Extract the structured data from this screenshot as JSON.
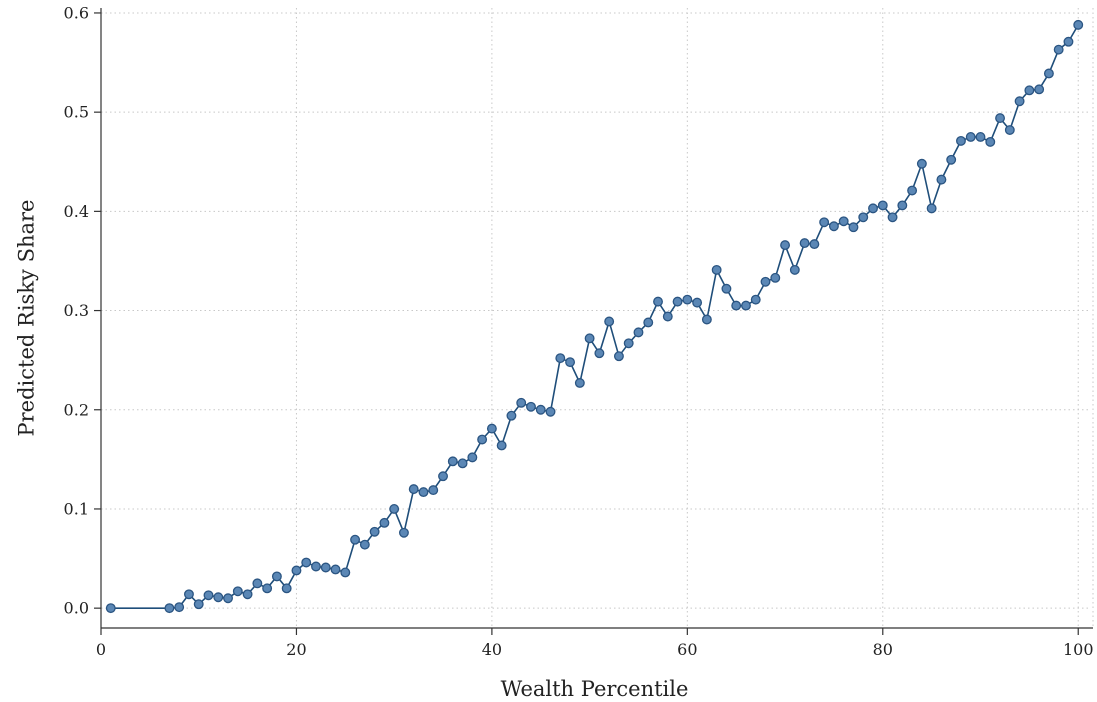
{
  "chart_data": {
    "type": "line",
    "title": "",
    "xlabel": "Wealth Percentile",
    "ylabel": "Predicted Risky Share",
    "xlim": [
      0,
      101
    ],
    "ylim": [
      -0.02,
      0.605
    ],
    "x_ticks": [
      0,
      20,
      40,
      60,
      80,
      100
    ],
    "x_tick_labels": [
      "0",
      "20",
      "40",
      "60",
      "80",
      "100"
    ],
    "y_ticks": [
      0.0,
      0.1,
      0.2,
      0.3,
      0.4,
      0.5,
      0.6
    ],
    "y_tick_labels": [
      "0.0",
      "0.1",
      "0.2",
      "0.3",
      "0.4",
      "0.5",
      "0.6"
    ],
    "grid": true,
    "markers": true,
    "colors": {
      "line": "#1f4e7a",
      "marker_fill": "#5b87b5",
      "marker_edge": "#2b5582"
    },
    "series": [
      {
        "x": [
          1,
          7,
          8,
          9,
          10,
          11,
          12,
          13,
          14,
          15,
          16,
          17,
          18,
          19,
          20,
          21,
          22,
          23,
          24,
          25,
          26,
          27,
          28,
          29,
          30,
          31,
          32,
          33,
          34,
          35,
          36,
          37,
          38,
          39,
          40,
          41,
          42,
          43,
          44,
          45,
          46,
          47,
          48,
          49,
          50,
          51,
          52,
          53,
          54,
          55,
          56,
          57,
          58,
          59,
          60,
          61,
          62,
          63,
          64,
          65,
          66,
          67,
          68,
          69,
          70,
          71,
          72,
          73,
          74,
          75,
          76,
          77,
          78,
          79,
          80,
          81,
          82,
          83,
          84,
          85,
          86,
          87,
          88,
          89,
          90,
          91,
          92,
          93,
          94,
          95,
          96,
          97,
          98,
          99,
          100
        ],
        "values": [
          0.0,
          0.0,
          0.001,
          0.014,
          0.004,
          0.013,
          0.011,
          0.01,
          0.017,
          0.014,
          0.025,
          0.02,
          0.032,
          0.02,
          0.038,
          0.046,
          0.042,
          0.041,
          0.039,
          0.036,
          0.069,
          0.064,
          0.077,
          0.086,
          0.1,
          0.076,
          0.12,
          0.117,
          0.119,
          0.133,
          0.148,
          0.146,
          0.152,
          0.17,
          0.181,
          0.164,
          0.194,
          0.207,
          0.203,
          0.2,
          0.198,
          0.252,
          0.248,
          0.227,
          0.272,
          0.257,
          0.289,
          0.254,
          0.267,
          0.278,
          0.288,
          0.309,
          0.294,
          0.309,
          0.311,
          0.308,
          0.291,
          0.341,
          0.322,
          0.305,
          0.305,
          0.311,
          0.329,
          0.333,
          0.366,
          0.341,
          0.368,
          0.367,
          0.389,
          0.385,
          0.39,
          0.384,
          0.394,
          0.403,
          0.406,
          0.394,
          0.406,
          0.421,
          0.448,
          0.403,
          0.432,
          0.452,
          0.471,
          0.475,
          0.475,
          0.47,
          0.494,
          0.482,
          0.511,
          0.522,
          0.523,
          0.539,
          0.563,
          0.571,
          0.588
        ]
      }
    ]
  }
}
